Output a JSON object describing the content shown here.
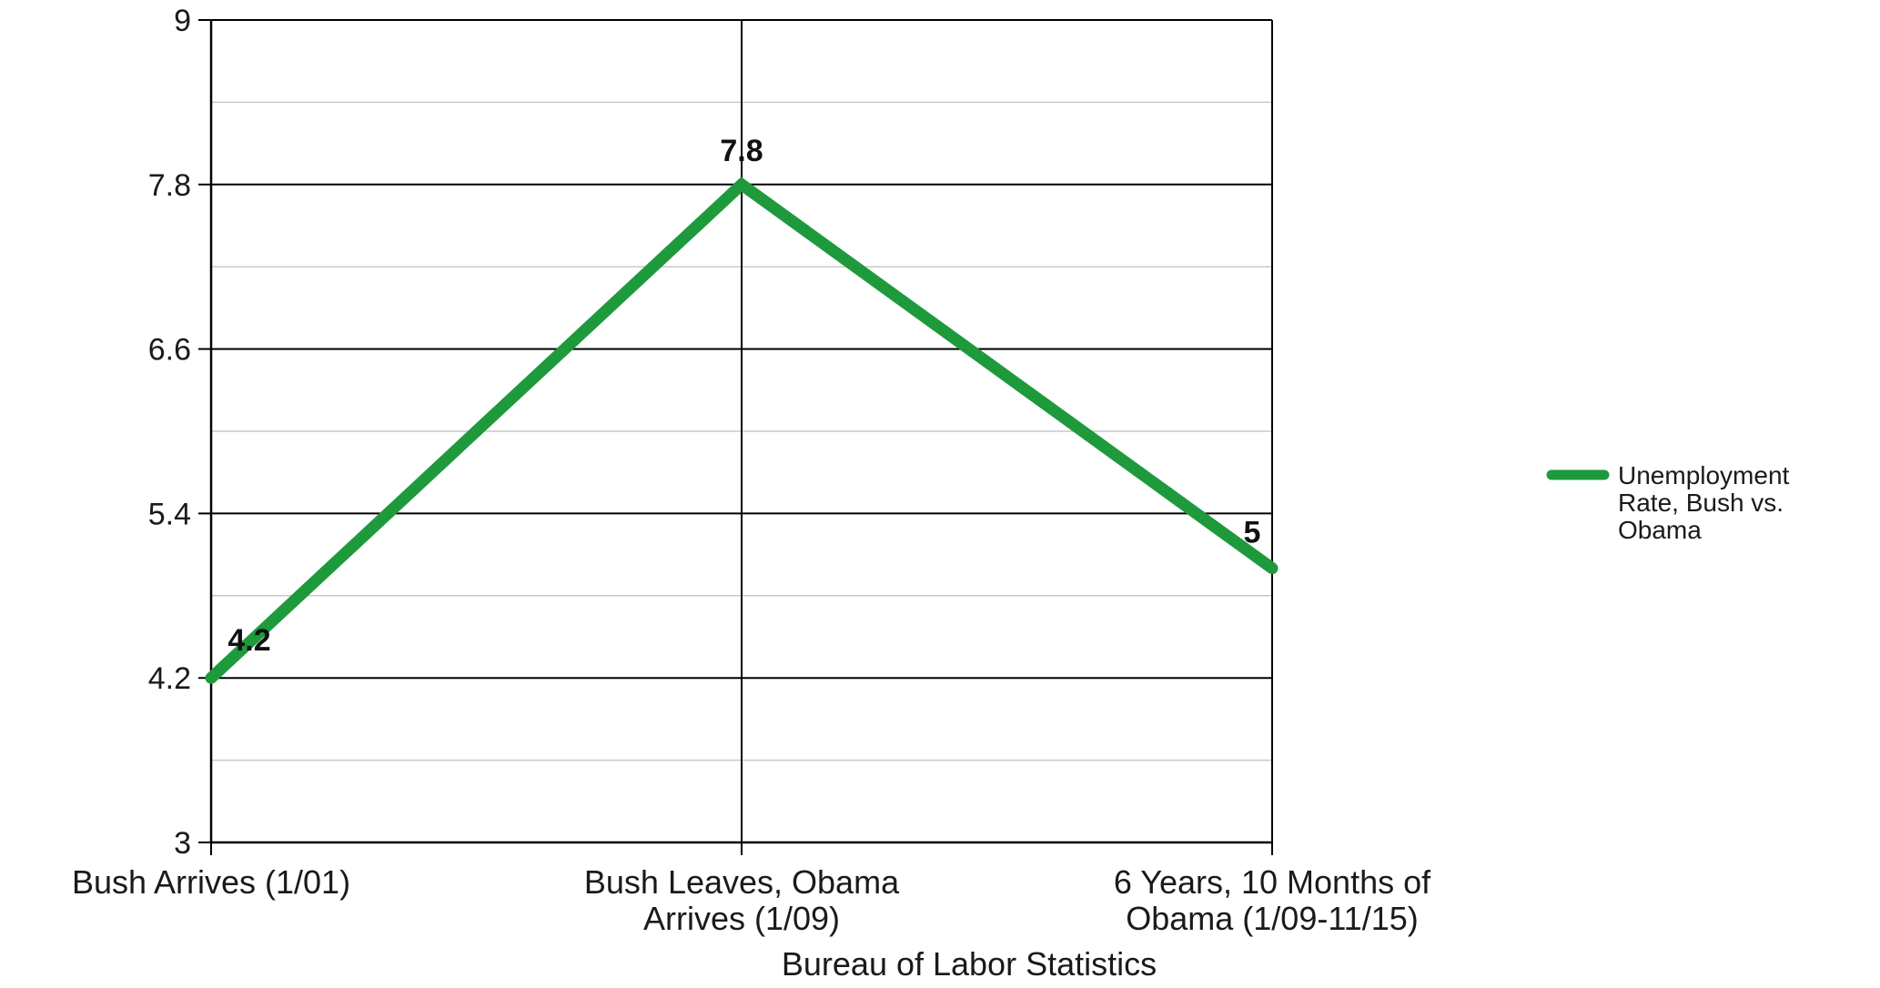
{
  "chart_data": {
    "type": "line",
    "categories": [
      [
        "Bush Arrives (1/01)"
      ],
      [
        "Bush Leaves, Obama",
        "Arrives (1/09)"
      ],
      [
        "6 Years, 10 Months of",
        "Obama (1/09-11/15)"
      ]
    ],
    "series": [
      {
        "name": [
          "Unemployment",
          "Rate, Bush vs.",
          "Obama"
        ],
        "values": [
          4.2,
          7.8,
          5
        ],
        "data_labels": [
          "4.2",
          "7.8",
          "5"
        ],
        "color": "#1e9a3c"
      }
    ],
    "title": "",
    "xlabel": "Bureau of Labor Statistics",
    "ylabel": "",
    "ylim": [
      3,
      9
    ],
    "yticks": [
      3,
      4.2,
      5.4,
      6.6,
      7.8,
      9
    ],
    "ytick_labels": [
      "3",
      "4.2",
      "5.4",
      "6.6",
      "7.8",
      "9"
    ],
    "minor_gridlines": true,
    "grid": true,
    "legend_position": "right",
    "colors": {
      "series": "#1e9a3c",
      "major_grid": "#000000",
      "minor_grid": "#c8c8c8",
      "text": "#1a1a1a"
    }
  }
}
